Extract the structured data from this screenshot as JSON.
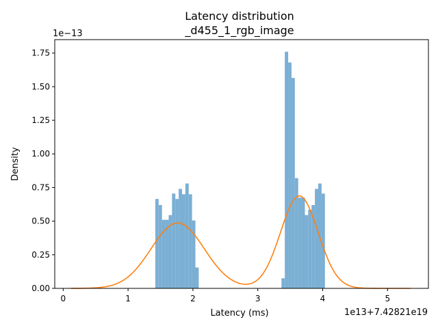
{
  "chart_data": {
    "type": "bar",
    "title": "Latency distribution",
    "subtitle": "_d455_1_rgb_image",
    "xlabel": "Latency (ms)",
    "ylabel": "Density",
    "x_offset_label": "1e13+7.42821e19",
    "y_scale_label": "1e−13",
    "xlim": [
      -0.13,
      5.63
    ],
    "ylim": [
      0,
      1.85
    ],
    "x_ticks": [
      0,
      1,
      2,
      3,
      4,
      5
    ],
    "x_tick_labels": [
      "0",
      "1",
      "2",
      "3",
      "4",
      "5"
    ],
    "y_ticks": [
      0,
      0.25,
      0.5,
      0.75,
      1.0,
      1.25,
      1.5,
      1.75
    ],
    "y_tick_labels": [
      "0.00",
      "0.25",
      "0.50",
      "0.75",
      "1.00",
      "1.25",
      "1.50",
      "1.75"
    ],
    "histogram": {
      "name": "histogram",
      "color": "#7bafd4",
      "bin_width": 0.0515,
      "bin_starts": [
        1.42,
        1.4715,
        1.523,
        1.5745,
        1.626,
        1.6775,
        1.729,
        1.7805,
        1.832,
        1.8835,
        1.935,
        1.9865,
        2.038,
        2.0895,
        3.365,
        3.4165,
        3.468,
        3.5195,
        3.571,
        3.6225,
        3.674,
        3.7255,
        3.777,
        3.8285,
        3.88,
        3.9315,
        3.983,
        4.0345
      ],
      "values": [
        0.665,
        0.62,
        0.51,
        0.51,
        0.545,
        0.705,
        0.665,
        0.74,
        0.7,
        0.78,
        0.7,
        0.505,
        0.155,
        0,
        0.075,
        1.76,
        1.68,
        1.565,
        0.82,
        0.675,
        0.675,
        0.545,
        0.585,
        0.62,
        0.74,
        0.78,
        0.705,
        0
      ]
    },
    "kde": {
      "name": "kde",
      "color": "#ff7f0e",
      "x_min": 0.12,
      "x_max": 5.35,
      "components": [
        {
          "weight": 0.5,
          "mean": 1.765,
          "sd": 0.41
        },
        {
          "weight": 0.5,
          "mean": 3.64,
          "sd": 0.29
        }
      ]
    }
  }
}
